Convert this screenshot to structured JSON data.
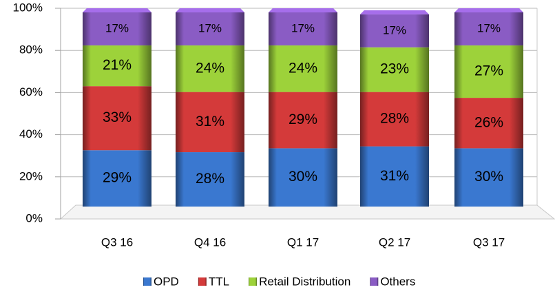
{
  "chart_data": {
    "type": "bar",
    "stacked": true,
    "categories": [
      "Q3 16",
      "Q4 16",
      "Q1 17",
      "Q2 17",
      "Q3 17"
    ],
    "series": [
      {
        "name": "OPD",
        "color": "#3a78d0",
        "values": [
          29,
          28,
          30,
          31,
          30
        ],
        "value_labels": [
          "29%",
          "28%",
          "30%",
          "31%",
          "30%"
        ]
      },
      {
        "name": "TTL",
        "color": "#d43a3a",
        "values": [
          33,
          31,
          29,
          28,
          26
        ],
        "value_labels": [
          "33%",
          "31%",
          "29%",
          "28%",
          "26%"
        ]
      },
      {
        "name": "Retail Distribution",
        "color": "#9dd23a",
        "values": [
          21,
          24,
          24,
          23,
          27
        ],
        "value_labels": [
          "21%",
          "24%",
          "24%",
          "23%",
          "27%"
        ]
      },
      {
        "name": "Others",
        "color": "#8a5cc4",
        "values": [
          17,
          17,
          17,
          17,
          17
        ],
        "value_labels": [
          "17%",
          "17%",
          "17%",
          "17%",
          "17%"
        ]
      }
    ],
    "ylim": [
      0,
      100
    ],
    "yticks": [
      {
        "value": 0,
        "label": "0%"
      },
      {
        "value": 20,
        "label": "20%"
      },
      {
        "value": 40,
        "label": "40%"
      },
      {
        "value": 60,
        "label": "60%"
      },
      {
        "value": 80,
        "label": "80%"
      },
      {
        "value": 100,
        "label": "100%"
      }
    ],
    "grid": true,
    "legend": "bottom"
  }
}
